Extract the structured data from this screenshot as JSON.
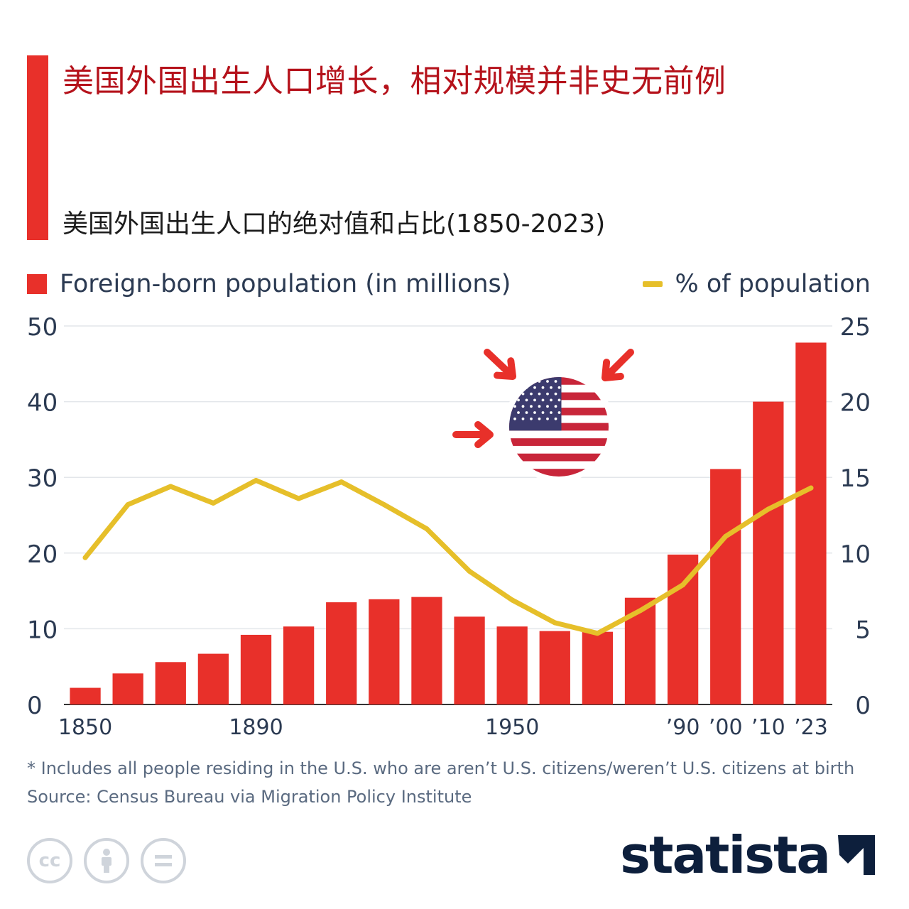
{
  "header": {
    "title": "美国外国出生人口增长，相对规模并非史无前例",
    "subtitle": "美国外国出生人口的绝对值和占比(1850-2023)"
  },
  "legend": {
    "bar_label": "Foreign-born population (in millions)",
    "line_label": "% of population"
  },
  "colors": {
    "accent": "#e8302a",
    "title": "#b5121b",
    "line": "#e6bf2a",
    "grid": "#e3e6ea",
    "brand": "#0d1f3c"
  },
  "chart_data": {
    "type": "bar",
    "x": [
      "1850",
      "1860",
      "1870",
      "1880",
      "1890",
      "1900",
      "1910",
      "1920",
      "1930",
      "1940",
      "1950",
      "1960",
      "1970",
      "1980",
      "1990",
      "2000",
      "2010",
      "2023"
    ],
    "x_tick_labels": [
      "1850",
      "",
      "",
      "",
      "1890",
      "",
      "",
      "",
      "",
      "",
      "1950",
      "",
      "",
      "",
      "’90",
      "’00",
      "’10",
      "’23"
    ],
    "series": [
      {
        "name": "Foreign-born population (in millions)",
        "type": "bar",
        "axis": "left",
        "values": [
          2.2,
          4.1,
          5.6,
          6.7,
          9.2,
          10.3,
          13.5,
          13.9,
          14.2,
          11.6,
          10.3,
          9.7,
          9.6,
          14.1,
          19.8,
          31.1,
          40.0,
          47.8
        ]
      },
      {
        "name": "% of population",
        "type": "line",
        "axis": "right",
        "values": [
          9.7,
          13.2,
          14.4,
          13.3,
          14.8,
          13.6,
          14.7,
          13.2,
          11.6,
          8.8,
          6.9,
          5.4,
          4.7,
          6.2,
          7.9,
          11.1,
          12.9,
          14.3
        ]
      }
    ],
    "y_left": {
      "ticks": [
        "0",
        "10",
        "20",
        "30",
        "40",
        "50"
      ],
      "ylim": [
        0,
        50
      ]
    },
    "y_right": {
      "ticks": [
        "0",
        "5",
        "10",
        "15",
        "20",
        "25"
      ],
      "ylim": [
        0,
        25
      ]
    },
    "grid": true,
    "legend_position": "top"
  },
  "footer": {
    "note": "* Includes all people residing in the U.S. who are aren’t U.S. citizens/weren’t U.S. citizens at birth",
    "source": "Source: Census Bureau via Migration Policy Institute",
    "license_icons": [
      "cc-icon",
      "by-icon",
      "nd-icon"
    ],
    "brand": "statista"
  }
}
